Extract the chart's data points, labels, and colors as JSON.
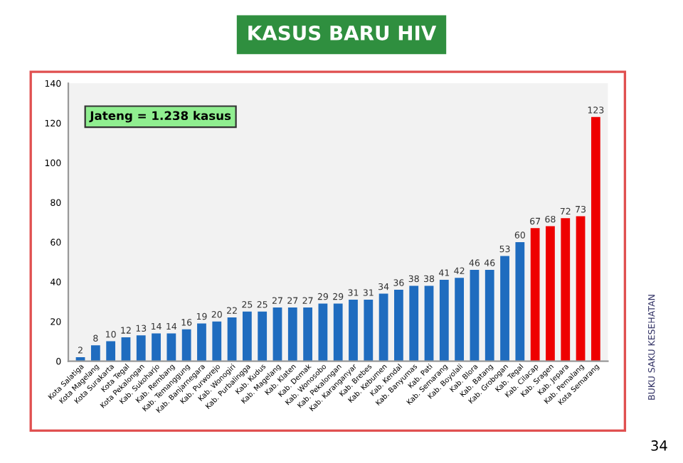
{
  "chart_data": {
    "type": "bar",
    "title": "KASUS BARU HIV",
    "categories": [
      "Kota Salatiga",
      "Kota Magelang",
      "Kota Surakarta",
      "Kota Tegal",
      "Kota Pekalongan",
      "Kab. Sukoharjo",
      "Kab. Rembang",
      "Kab. Temanggung",
      "Kab. Banjarnegara",
      "Kab. Purworejo",
      "Kab. Wonogiri",
      "Kab. Purbalingga",
      "Kab. Kudus",
      "Kab. Magelang",
      "Kab. Klaten",
      "Kab. Demak",
      "Kab. Wonosobo",
      "Kab. Pekalongan",
      "Kab. Karanganyar",
      "Kab. Brebes",
      "Kab. Kebumen",
      "Kab. Kendal",
      "Kab. Banyumas",
      "Kab. Pati",
      "Kab. Semarang",
      "Kab. Boyolali",
      "Kab. Blora",
      "Kab. Batang",
      "Kab. Grobogan",
      "Kab. Tegal",
      "Kab. Cilacap",
      "Kab. Sragen",
      "Kab. Jepara",
      "Kab. Pemalang",
      "Kota Semarang"
    ],
    "values": [
      2,
      8,
      10,
      12,
      13,
      14,
      14,
      16,
      19,
      20,
      22,
      25,
      25,
      27,
      27,
      27,
      29,
      29,
      31,
      31,
      34,
      36,
      38,
      38,
      41,
      42,
      46,
      46,
      53,
      60,
      67,
      68,
      72,
      73,
      123
    ],
    "colors": [
      "#1f6cbf",
      "#1f6cbf",
      "#1f6cbf",
      "#1f6cbf",
      "#1f6cbf",
      "#1f6cbf",
      "#1f6cbf",
      "#1f6cbf",
      "#1f6cbf",
      "#1f6cbf",
      "#1f6cbf",
      "#1f6cbf",
      "#1f6cbf",
      "#1f6cbf",
      "#1f6cbf",
      "#1f6cbf",
      "#1f6cbf",
      "#1f6cbf",
      "#1f6cbf",
      "#1f6cbf",
      "#1f6cbf",
      "#1f6cbf",
      "#1f6cbf",
      "#1f6cbf",
      "#1f6cbf",
      "#1f6cbf",
      "#1f6cbf",
      "#1f6cbf",
      "#1f6cbf",
      "#1f6cbf",
      "#ee0000",
      "#ee0000",
      "#ee0000",
      "#ee0000",
      "#ee0000"
    ],
    "ylim": [
      0,
      140
    ],
    "yticks": [
      0,
      20,
      40,
      60,
      80,
      100,
      120,
      140
    ],
    "data_labels": true,
    "grid": false,
    "legend": false,
    "annotations": [
      "Jateng = 1.238 kasus",
      "BUKU SAKU KESEHATAN",
      "34"
    ]
  }
}
